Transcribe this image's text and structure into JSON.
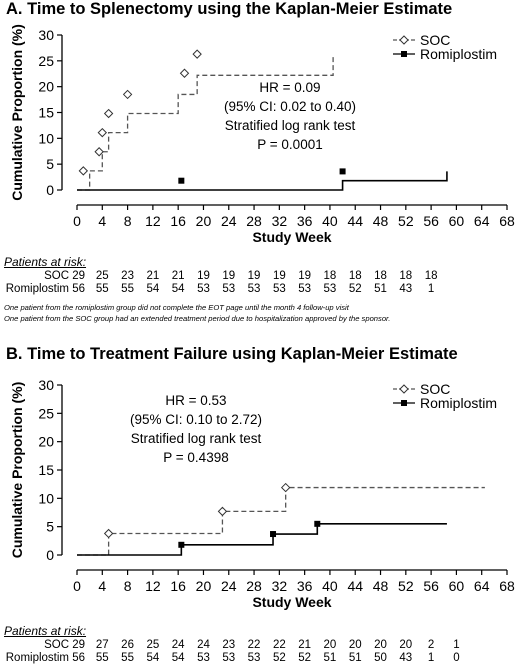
{
  "chart_data": [
    {
      "type": "line",
      "title": "A. Time to Splenectomy using the Kaplan-Meier Estimate",
      "xlabel": "Study Week",
      "ylabel": "Cumulative Proportion (%)",
      "xlim": [
        0,
        68
      ],
      "ylim": [
        0,
        30
      ],
      "x_ticks": [
        "0",
        "4",
        "8",
        "12",
        "16",
        "20",
        "24",
        "28",
        "32",
        "36",
        "40",
        "44",
        "48",
        "52",
        "56",
        "60",
        "64",
        "68"
      ],
      "y_ticks": [
        "0",
        "5",
        "10",
        "15",
        "20",
        "25",
        "30"
      ],
      "legend_position": "top-right",
      "series": [
        {
          "name": "SOC",
          "color": "#555555",
          "dash": true,
          "marker": "diamond",
          "x": [
            0,
            2,
            4,
            5,
            8,
            16,
            19,
            40.5
          ],
          "y": [
            0,
            3.7,
            7.4,
            11.1,
            14.8,
            18.5,
            22.2,
            26.3
          ],
          "markers": [
            [
              1,
              3.7
            ],
            [
              3.5,
              7.4
            ],
            [
              4,
              11.1
            ],
            [
              5,
              14.8
            ],
            [
              8,
              18.5
            ],
            [
              17,
              22.6
            ],
            [
              19,
              26.3
            ]
          ]
        },
        {
          "name": "Romiplostim",
          "color": "#000000",
          "dash": false,
          "marker": "square",
          "x": [
            0,
            16.5,
            42,
            58.5
          ],
          "y": [
            0,
            0,
            1.8,
            3.6
          ],
          "markers": [
            [
              16.5,
              1.8
            ],
            [
              42,
              3.6
            ]
          ]
        }
      ],
      "annotation": [
        "HR = 0.09",
        "(95% CI: 0.02 to 0.40)",
        "Stratified log rank test",
        "P = 0.0001"
      ],
      "risk_table": {
        "heading": "Patients at risk:",
        "weeks": [
          0,
          4,
          8,
          12,
          16,
          20,
          24,
          28,
          32,
          36,
          40,
          44,
          48,
          52,
          56
        ],
        "rows": [
          {
            "label": "SOC 29",
            "values": [
              "25",
              "23",
              "21",
              "21",
              "19",
              "19",
              "19",
              "19",
              "19",
              "18",
              "18",
              "18",
              "18",
              "18"
            ]
          },
          {
            "label": "Romiplostim 56",
            "values": [
              "55",
              "55",
              "54",
              "54",
              "53",
              "53",
              "53",
              "53",
              "53",
              "53",
              "52",
              "51",
              "43",
              "1"
            ]
          }
        ]
      },
      "footnotes": [
        "One patient from the romiplostim group did not complete the EOT page until the month 4 follow-up visit",
        "One patient from the SOC group had an extended treatment period due to hospitalization approved by the sponsor."
      ]
    },
    {
      "type": "line",
      "title": "B. Time to Treatment Failure using Kaplan-Meier Estimate",
      "xlabel": "Study Week",
      "ylabel": "Cumulative Proportion (%)",
      "xlim": [
        0,
        68
      ],
      "ylim": [
        0,
        30
      ],
      "x_ticks": [
        "0",
        "4",
        "8",
        "12",
        "16",
        "20",
        "24",
        "28",
        "32",
        "36",
        "40",
        "44",
        "48",
        "52",
        "56",
        "60",
        "64",
        "68"
      ],
      "y_ticks": [
        "0",
        "5",
        "10",
        "15",
        "20",
        "25",
        "30"
      ],
      "legend_position": "top-right",
      "series": [
        {
          "name": "SOC",
          "color": "#555555",
          "dash": true,
          "marker": "diamond",
          "x": [
            0,
            5,
            23,
            33,
            64.5
          ],
          "y": [
            0,
            3.8,
            7.7,
            11.9,
            11.9
          ],
          "markers": [
            [
              5,
              3.8
            ],
            [
              23,
              7.7
            ],
            [
              33,
              11.9
            ]
          ]
        },
        {
          "name": "Romiplostim",
          "color": "#000000",
          "dash": false,
          "marker": "square",
          "x": [
            0,
            16.5,
            31,
            38,
            58.5
          ],
          "y": [
            0,
            1.8,
            3.7,
            5.5,
            5.5
          ],
          "markers": [
            [
              16.5,
              1.8
            ],
            [
              31,
              3.7
            ],
            [
              38,
              5.5
            ]
          ]
        }
      ],
      "annotation": [
        "HR = 0.53",
        "(95% CI: 0.10 to 2.72)",
        "Stratified log rank test",
        "P = 0.4398"
      ],
      "risk_table": {
        "heading": "Patients at risk:",
        "weeks": [
          0,
          4,
          8,
          12,
          16,
          20,
          24,
          28,
          32,
          36,
          40,
          44,
          48,
          52,
          56,
          60,
          64
        ],
        "rows": [
          {
            "label": "SOC 29",
            "values": [
              "27",
              "26",
              "25",
              "24",
              "24",
              "23",
              "22",
              "22",
              "21",
              "20",
              "20",
              "20",
              "20",
              "2",
              "1"
            ]
          },
          {
            "label": "Romiplostim 56",
            "values": [
              "55",
              "55",
              "54",
              "54",
              "53",
              "53",
              "53",
              "52",
              "52",
              "51",
              "51",
              "50",
              "43",
              "1",
              "0"
            ]
          }
        ]
      }
    }
  ]
}
